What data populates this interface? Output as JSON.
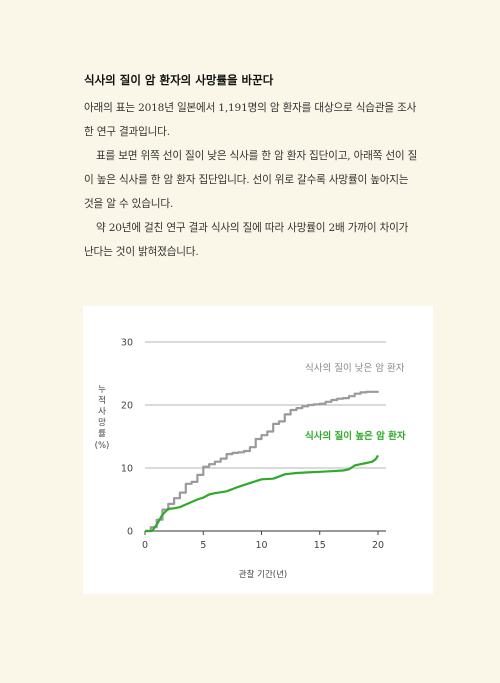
{
  "article": {
    "heading": "식사의 질이 암 환자의 사망률을 바꾼다",
    "paragraphs": [
      "아래의 표는 2018년 일본에서 1,191명의 암 환자를 대상으로 식습관을 조사한 연구 결과입니다.",
      "표를 보면 위쪽 선이 질이 낮은 식사를 한 암 환자 집단이고, 아래쪽 선이 질이 높은 식사를 한 암 환자 집단입니다. 선이 위로 갈수록 사망률이 높아지는 것을 알 수 있습니다.",
      "약 20년에 걸친 연구 결과 식사의 질에 따라 사망률이 2배 가까이 차이가 난다는 것이 밝혀졌습니다."
    ]
  },
  "chart_data": {
    "type": "line",
    "xlabel": "관찰 기간(년)",
    "ylabel_chars": [
      "누",
      "적",
      "사",
      "망",
      "률"
    ],
    "ylabel_unit": "(%)",
    "xlim": [
      0,
      20
    ],
    "ylim": [
      0,
      30
    ],
    "xticks": [
      "0",
      "5",
      "10",
      "15",
      "20"
    ],
    "yticks": [
      "0",
      "10",
      "20",
      "30"
    ],
    "grid": "horizontal",
    "series": [
      {
        "name": "식사의 질이 낮은 암 환자",
        "color": "#9a9a9a",
        "step": true,
        "x": [
          0,
          0.5,
          1,
          1.5,
          2,
          2.5,
          3,
          3.5,
          4,
          4.5,
          5,
          5.5,
          6,
          6.5,
          7,
          7.5,
          8,
          8.5,
          9,
          9.5,
          10,
          10.5,
          11,
          11.5,
          12,
          12.5,
          13,
          13.5,
          14,
          14.5,
          15,
          15.5,
          16,
          16.5,
          17,
          17.5,
          18,
          18.5,
          19,
          19.5,
          20
        ],
        "values": [
          0,
          0.6,
          1.8,
          3.4,
          4.3,
          5.2,
          6.1,
          7.5,
          7.8,
          8.9,
          10.2,
          10.6,
          11.0,
          11.5,
          12.2,
          12.4,
          12.5,
          12.7,
          13.3,
          14.6,
          15.2,
          15.8,
          17.0,
          17.4,
          18.5,
          19.2,
          19.5,
          19.8,
          20.0,
          20.1,
          20.2,
          20.5,
          20.8,
          21.0,
          21.1,
          21.4,
          21.8,
          22.0,
          22.1,
          22.1,
          22.2
        ]
      },
      {
        "name": "식사의 질이 높은 암 환자",
        "color": "#2faa2a",
        "step": false,
        "x": [
          0,
          0.6,
          1,
          1.5,
          2,
          2.5,
          3,
          3.5,
          4,
          4.5,
          5,
          5.5,
          6,
          7,
          8,
          9,
          10,
          11,
          12,
          13,
          14,
          15,
          16,
          17,
          17.5,
          18,
          18.5,
          19,
          19.5,
          19.8,
          20
        ],
        "values": [
          0,
          0,
          1.0,
          2.6,
          3.5,
          3.6,
          3.8,
          4.2,
          4.6,
          5.0,
          5.3,
          5.8,
          6.0,
          6.3,
          7.0,
          7.6,
          8.2,
          8.3,
          9.0,
          9.2,
          9.3,
          9.4,
          9.5,
          9.6,
          9.8,
          10.4,
          10.6,
          10.8,
          11.0,
          11.4,
          12.0
        ]
      }
    ]
  }
}
